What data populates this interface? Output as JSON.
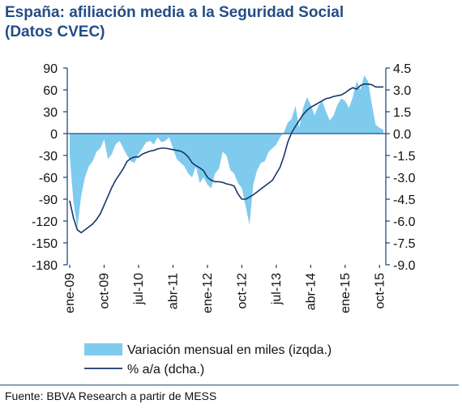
{
  "title_line1": "España: afiliación media a la Seguridad Social",
  "title_line2": "(Datos CVEC)",
  "source": "Fuente: BBVA Research a partir de MESS",
  "colors": {
    "area": "#7fcbee",
    "line": "#16356a",
    "axis": "#244d86",
    "title": "#244d86"
  },
  "chart_data": {
    "type": "area",
    "title": "",
    "xlabel": "",
    "ylabel": "",
    "x_tick_labels": [
      "ene-09",
      "oct-09",
      "jul-10",
      "abr-11",
      "ene-12",
      "oct-12",
      "jul-13",
      "abr-14",
      "ene-15",
      "oct-15"
    ],
    "left_axis": {
      "range": [
        -180,
        90
      ],
      "ticks": [
        90,
        60,
        30,
        0,
        -30,
        -60,
        -90,
        -120,
        -150,
        -180
      ],
      "tick_labels": [
        "90",
        "60",
        "30",
        "0",
        "-30",
        "-60",
        "-90",
        "-120",
        "-150",
        "-180"
      ]
    },
    "right_axis": {
      "range": [
        -9.0,
        4.5
      ],
      "ticks": [
        4.5,
        3.0,
        1.5,
        0.0,
        -1.5,
        -3.0,
        -4.5,
        -6.0,
        -7.5,
        -9.0
      ],
      "tick_labels": [
        "4.5",
        "3.0",
        "1.5",
        "0.0",
        "-1.5",
        "-3.0",
        "-4.5",
        "-6.0",
        "-7.5",
        "-9.0"
      ]
    },
    "series": [
      {
        "name": "Variación mensual en miles (izqda.)",
        "type": "area",
        "axis": "left",
        "x": [
          "2009-01",
          "2009-02",
          "2009-03",
          "2009-04",
          "2009-05",
          "2009-06",
          "2009-07",
          "2009-08",
          "2009-09",
          "2009-10",
          "2009-11",
          "2009-12",
          "2010-01",
          "2010-02",
          "2010-03",
          "2010-04",
          "2010-05",
          "2010-06",
          "2010-07",
          "2010-08",
          "2010-09",
          "2010-10",
          "2010-11",
          "2010-12",
          "2011-01",
          "2011-02",
          "2011-03",
          "2011-04",
          "2011-05",
          "2011-06",
          "2011-07",
          "2011-08",
          "2011-09",
          "2011-10",
          "2011-11",
          "2011-12",
          "2012-01",
          "2012-02",
          "2012-03",
          "2012-04",
          "2012-05",
          "2012-06",
          "2012-07",
          "2012-08",
          "2012-09",
          "2012-10",
          "2012-11",
          "2012-12",
          "2013-01",
          "2013-02",
          "2013-03",
          "2013-04",
          "2013-05",
          "2013-06",
          "2013-07",
          "2013-08",
          "2013-09",
          "2013-10",
          "2013-11",
          "2013-12",
          "2014-01",
          "2014-02",
          "2014-03",
          "2014-04",
          "2014-05",
          "2014-06",
          "2014-07",
          "2014-08",
          "2014-09",
          "2014-10",
          "2014-11",
          "2014-12",
          "2015-01",
          "2015-02",
          "2015-03",
          "2015-04",
          "2015-05",
          "2015-06",
          "2015-07",
          "2015-08",
          "2015-09",
          "2015-10",
          "2015-11"
        ],
        "values": [
          -30,
          -95,
          -130,
          -85,
          -60,
          -45,
          -38,
          -25,
          -20,
          -8,
          -35,
          -28,
          -15,
          -10,
          -20,
          -30,
          -38,
          -40,
          -28,
          -20,
          -12,
          -10,
          -15,
          -5,
          -12,
          -10,
          -5,
          -20,
          -35,
          -40,
          -45,
          -55,
          -60,
          -45,
          -68,
          -60,
          -70,
          -75,
          -55,
          -48,
          -25,
          -30,
          -50,
          -55,
          -68,
          -75,
          -100,
          -125,
          -70,
          -50,
          -40,
          -38,
          -25,
          -20,
          -15,
          -5,
          2,
          15,
          20,
          38,
          8,
          35,
          50,
          40,
          25,
          38,
          45,
          30,
          18,
          25,
          40,
          48,
          45,
          35,
          50,
          72,
          60,
          80,
          72,
          40,
          12,
          8,
          5
        ]
      },
      {
        "name": "% a/a (dcha.)",
        "type": "line",
        "axis": "right",
        "x": [
          "2009-01",
          "2009-02",
          "2009-03",
          "2009-04",
          "2009-05",
          "2009-06",
          "2009-07",
          "2009-08",
          "2009-09",
          "2009-10",
          "2009-11",
          "2009-12",
          "2010-01",
          "2010-02",
          "2010-03",
          "2010-04",
          "2010-05",
          "2010-06",
          "2010-07",
          "2010-08",
          "2010-09",
          "2010-10",
          "2010-11",
          "2010-12",
          "2011-01",
          "2011-02",
          "2011-03",
          "2011-04",
          "2011-05",
          "2011-06",
          "2011-07",
          "2011-08",
          "2011-09",
          "2011-10",
          "2011-11",
          "2011-12",
          "2012-01",
          "2012-02",
          "2012-03",
          "2012-04",
          "2012-05",
          "2012-06",
          "2012-07",
          "2012-08",
          "2012-09",
          "2012-10",
          "2012-11",
          "2012-12",
          "2013-01",
          "2013-02",
          "2013-03",
          "2013-04",
          "2013-05",
          "2013-06",
          "2013-07",
          "2013-08",
          "2013-09",
          "2013-10",
          "2013-11",
          "2013-12",
          "2014-01",
          "2014-02",
          "2014-03",
          "2014-04",
          "2014-05",
          "2014-06",
          "2014-07",
          "2014-08",
          "2014-09",
          "2014-10",
          "2014-11",
          "2014-12",
          "2015-01",
          "2015-02",
          "2015-03",
          "2015-04",
          "2015-05",
          "2015-06",
          "2015-07",
          "2015-08",
          "2015-09",
          "2015-10",
          "2015-11"
        ],
        "values": [
          -4.6,
          -5.8,
          -6.6,
          -6.8,
          -6.6,
          -6.4,
          -6.2,
          -5.9,
          -5.5,
          -4.9,
          -4.3,
          -3.7,
          -3.2,
          -2.8,
          -2.4,
          -1.9,
          -1.7,
          -1.6,
          -1.6,
          -1.4,
          -1.3,
          -1.2,
          -1.15,
          -1.05,
          -1.0,
          -1.0,
          -1.05,
          -1.1,
          -1.15,
          -1.2,
          -1.35,
          -1.6,
          -2.0,
          -2.2,
          -2.35,
          -2.55,
          -3.0,
          -3.2,
          -3.3,
          -3.3,
          -3.35,
          -3.45,
          -3.5,
          -3.6,
          -4.15,
          -4.5,
          -4.5,
          -4.35,
          -4.2,
          -4.0,
          -3.8,
          -3.6,
          -3.4,
          -3.2,
          -2.75,
          -2.3,
          -1.55,
          -0.6,
          0.05,
          0.5,
          0.9,
          1.3,
          1.6,
          1.8,
          1.95,
          2.1,
          2.25,
          2.4,
          2.45,
          2.55,
          2.6,
          2.65,
          2.8,
          3.0,
          3.15,
          3.05,
          3.3,
          3.4,
          3.4,
          3.35,
          3.2,
          3.2,
          3.2
        ]
      }
    ]
  }
}
